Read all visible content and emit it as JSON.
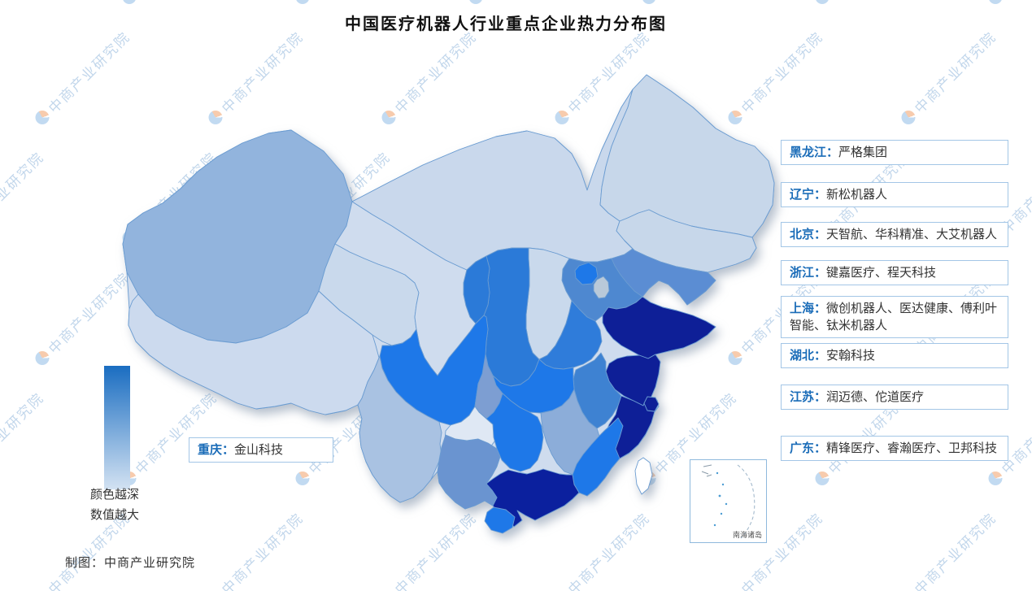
{
  "title": "中国医疗机器人行业重点企业热力分布图",
  "footer": {
    "credit": "制图：中商产业研究院"
  },
  "watermark": {
    "text": "中商产业研究院",
    "color": "#6c9ed0"
  },
  "legend": {
    "caption_line1": "颜色越深",
    "caption_line2": "数值越大",
    "top_color": "#1a6dc1",
    "bottom_color": "#d3e2f2"
  },
  "inset": {
    "label": "南海诸岛"
  },
  "labels": [
    {
      "province": "黑龙江",
      "sep": "：",
      "companies": "严格集团"
    },
    {
      "province": "辽宁",
      "sep": "：",
      "companies": "新松机器人"
    },
    {
      "province": "北京",
      "sep": "：",
      "companies": "天智航、华科精准、大艾机器人"
    },
    {
      "province": "浙江",
      "sep": "：",
      "companies": "键嘉医疗、程天科技"
    },
    {
      "province": "上海",
      "sep": "：",
      "companies": "微创机器人、医达健康、傅利叶智能、钛米机器人"
    },
    {
      "province": "湖北",
      "sep": "：",
      "companies": "安翰科技"
    },
    {
      "province": "江苏",
      "sep": "：",
      "companies": "润迈德、佗道医疗"
    },
    {
      "province": "广东",
      "sep": "：",
      "companies": "精锋医疗、睿瀚医疗、卫邦科技"
    },
    {
      "province": "重庆",
      "sep": "：",
      "companies": "金山科技"
    }
  ],
  "map": {
    "province_colors": {
      "xinjiang": "#92b4dd",
      "xizang": "#ccdaee",
      "qinghai": "#c9d9ec",
      "gansu": "#cfdcee",
      "ningxia": "#2b7ad8",
      "neimenggu": "#c9d8ec",
      "heilongjiang": "#c7d7ea",
      "jilin": "#c7d7ea",
      "liaoning": "#5b8dd3",
      "hebei": "#4e88d0",
      "beijing": "#1e78e8",
      "tianjin": "#b9c9d9",
      "shanxi": "#c9d9ec",
      "shaanxi": "#2b7ad8",
      "henan": "#2f7cda",
      "shandong": "#0e1f97",
      "jiangsu": "#0e1f97",
      "anhui": "#3e82d2",
      "shanghai": "#0e1f97",
      "zhejiang": "#0e1f97",
      "hubei": "#1e78e8",
      "sichuan": "#1e78e8",
      "chongqing": "#7d9ed2",
      "guizhou": "#dfe8f4",
      "yunnan": "#a9c2e2",
      "hunan": "#1e78e8",
      "jiangxi": "#8cadd9",
      "fujian": "#1e78e8",
      "guangdong": "#0b209e",
      "guangxi": "#6a94d0",
      "hainan": "#1e78e8",
      "taiwan": "#ffffff"
    }
  },
  "chart_data": {
    "type": "choropleth_map",
    "title": "中国医疗机器人行业重点企业热力分布图",
    "colorbar_caption": "颜色越深 数值越大",
    "credit": "制图：中商产业研究院",
    "inset_label": "南海诸岛",
    "legend_position": "bottom-left",
    "series": [
      {
        "region": "黑龙江",
        "companies": [
          "严格集团"
        ]
      },
      {
        "region": "辽宁",
        "companies": [
          "新松机器人"
        ]
      },
      {
        "region": "北京",
        "companies": [
          "天智航",
          "华科精准",
          "大艾机器人"
        ]
      },
      {
        "region": "浙江",
        "companies": [
          "键嘉医疗",
          "程天科技"
        ]
      },
      {
        "region": "上海",
        "companies": [
          "微创机器人",
          "医达健康",
          "傅利叶智能",
          "钛米机器人"
        ]
      },
      {
        "region": "湖北",
        "companies": [
          "安翰科技"
        ]
      },
      {
        "region": "江苏",
        "companies": [
          "润迈德",
          "佗道医疗"
        ]
      },
      {
        "region": "广东",
        "companies": [
          "精锋医疗",
          "睿瀚医疗",
          "卫邦科技"
        ]
      },
      {
        "region": "重庆",
        "companies": [
          "金山科技"
        ]
      }
    ]
  }
}
